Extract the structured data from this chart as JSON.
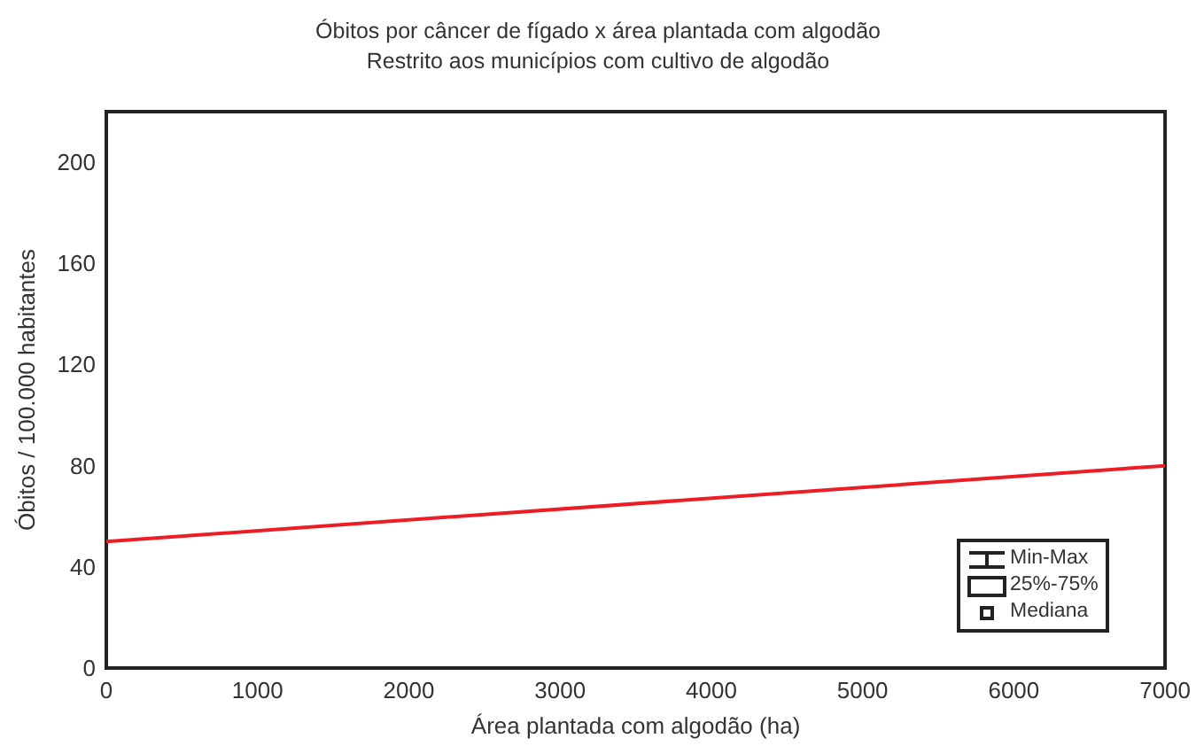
{
  "chart_data": {
    "type": "line",
    "title": "Óbitos por câncer de fígado x área plantada com algodão",
    "subtitle": "Restrito aos municípios com cultivo de algodão",
    "xlabel": "Área plantada com algodão (ha)",
    "ylabel": "Óbitos / 100.000 habitantes",
    "x": [
      0,
      7000
    ],
    "series": [
      {
        "color": "#ee1c25",
        "values": [
          50,
          80
        ]
      }
    ],
    "xlim": [
      0,
      7000
    ],
    "xticks": [
      0,
      1000,
      2000,
      3000,
      4000,
      5000,
      6000,
      7000
    ],
    "ylim": [
      0,
      220
    ],
    "yticks": [
      0,
      40,
      80,
      120,
      160,
      200
    ],
    "grid": false,
    "marker": "none",
    "line_style": "solid",
    "annotations": [
      "Min-Max",
      "25%-75%",
      "Mediana"
    ]
  }
}
